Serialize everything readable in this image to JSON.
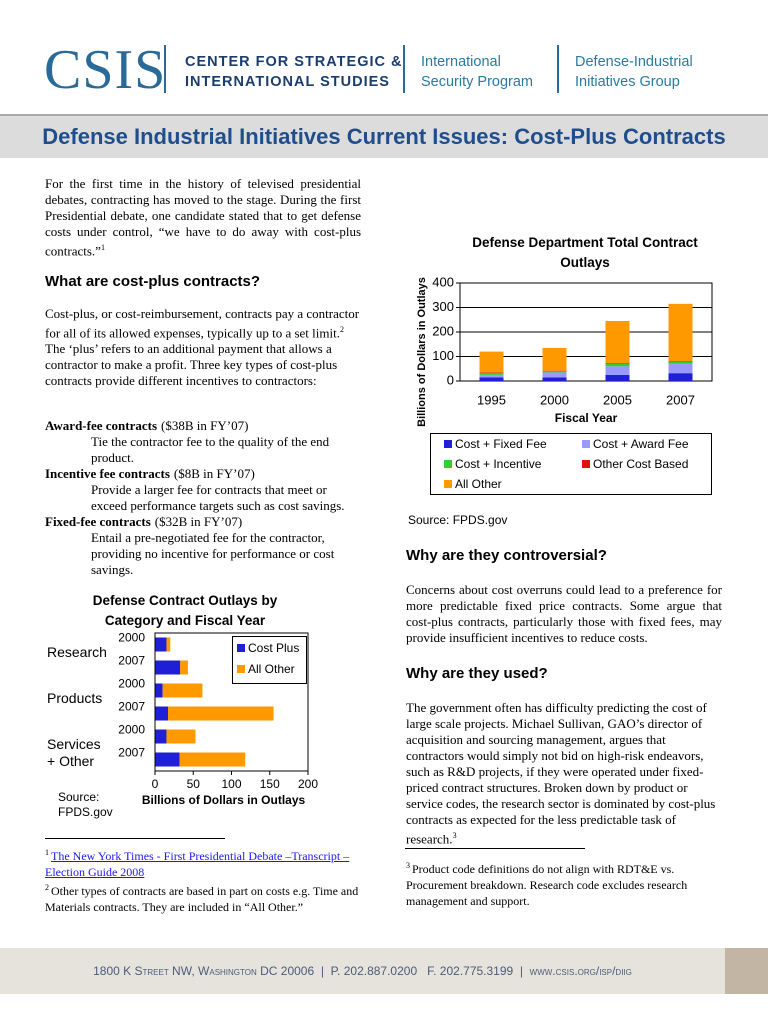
{
  "header": {
    "logo": "CSIS",
    "org_line1": "CENTER FOR STRATEGIC &",
    "org_line2": "INTERNATIONAL STUDIES",
    "program_line1": "International",
    "program_line2": "Security Program",
    "group_line1": "Defense-Industrial",
    "group_line2": "Initiatives Group"
  },
  "title": "Defense Industrial Initiatives Current Issues: Cost-Plus Contracts",
  "intro": [
    {
      "text": "For the first time in the history of televised presidential debates, contracting has moved to the stage.  During the first Presidential debate, one candidate stated that to get defense costs under control, “we have to do away with cost-plus contracts.”"
    },
    {
      "sup": "1"
    }
  ],
  "heading1": "What are cost-plus contracts?",
  "paragraph1": [
    {
      "text": "Cost-plus, or cost-reimbursement, contracts pay a contractor for all of its allowed expenses, typically up to a set limit."
    },
    {
      "sup": "2"
    },
    {
      "text": " The ‘plus’ refers to an additional payment that allows a contractor to make a profit. Three key types of cost-plus contracts provide different incentives to contractors:"
    }
  ],
  "contract_types": [
    {
      "name": "Award-fee contracts",
      "amount": "($38B in FY’07)",
      "description": "Tie the contractor fee to the quality of the end product."
    },
    {
      "name": "Incentive fee contracts",
      "amount": "($8B in FY’07)",
      "description": "Provide a larger fee for contracts that meet or exceed performance targets such as cost savings."
    },
    {
      "name": "Fixed-fee contracts",
      "amount": "($32B in FY’07)",
      "description": "Entail a pre-negotiated fee for the contractor, providing no incentive for performance or cost savings."
    }
  ],
  "heading2": "Why are they controversial?",
  "paragraph2": "Concerns about cost overruns could lead to a preference for more predictable fixed price contracts. Some argue that cost-plus contracts, particularly those with fixed fees, may provide insufficient incentives to reduce costs.",
  "heading3": "Why are they used?",
  "paragraph3": [
    {
      "text": "The government often has difficulty predicting the cost of large scale projects. Michael Sullivan, GAO’s director of acquisition and sourcing management, argues that contractors would simply not bid on high-risk endeavors, such as R&D projects, if they were operated under fixed-priced contract structures. Broken down by product or service codes, the research sector is dominated by cost-plus contracts as expected for the less predictable task of research."
    },
    {
      "sup": "3"
    }
  ],
  "footnotes": [
    {
      "number": "1",
      "link": "The New York Times - First Presidential Debate –Transcript – Election Guide 2008"
    },
    {
      "number": "2",
      "text": "Other types of contracts are based in part on costs e.g. Time and Materials contracts.  They are included in “All Other.”"
    },
    {
      "number": "3",
      "text": "Product code definitions do not align with RDT&E vs. Procurement breakdown.  Research code excludes research management and support."
    }
  ],
  "footer": "1800 K Street NW, Washington DC 20006  |  P. 202.887.0200   F. 202.775.3199  |  www.csis.org/isp/diig",
  "chart_data": [
    {
      "type": "bar",
      "stacked": true,
      "title": "Defense Department Total Contract Outlays",
      "categories": [
        "1995",
        "2000",
        "2005",
        "2007"
      ],
      "series": [
        {
          "name": "Cost + Fixed Fee",
          "color": "#1f1fd6",
          "values": [
            15,
            15,
            25,
            32
          ]
        },
        {
          "name": "Cost + Award Fee",
          "color": "#9999ff",
          "values": [
            10,
            20,
            35,
            38
          ]
        },
        {
          "name": "Cost + Incentive",
          "color": "#33cc33",
          "values": [
            8,
            5,
            10,
            8
          ]
        },
        {
          "name": "Other Cost Based",
          "color": "#e01010",
          "values": [
            2,
            2,
            3,
            3
          ]
        },
        {
          "name": "All Other",
          "color": "#ff9900",
          "values": [
            85,
            93,
            172,
            234
          ]
        }
      ],
      "ylim": [
        0,
        400
      ],
      "yticks": [
        0,
        100,
        200,
        300,
        400
      ],
      "grid": true,
      "y_label": "Billions of Dollars in Outlays",
      "x_label": "Fiscal Year",
      "source": "Source: FPDS.gov",
      "legend": "bottom"
    },
    {
      "type": "hbar",
      "stacked": true,
      "title": "Defense Contract Outlays by Category and Fiscal Year",
      "groups": [
        "Research",
        "Products",
        "Services + Other"
      ],
      "categories": [
        "2000",
        "2007",
        "2000",
        "2007",
        "2000",
        "2007"
      ],
      "series": [
        {
          "name": "Cost Plus",
          "color": "#1f1fd6",
          "values": [
            15,
            33,
            10,
            17,
            15,
            32
          ]
        },
        {
          "name": "All Other",
          "color": "#ff9900",
          "values": [
            5,
            10,
            52,
            138,
            38,
            86
          ]
        }
      ],
      "xlim": [
        0,
        200
      ],
      "xticks": [
        0,
        50,
        100,
        150,
        200
      ],
      "x_label": "Billions of Dollars in Outlays",
      "source": "Source: FPDS.gov",
      "legend": "upper right"
    }
  ]
}
